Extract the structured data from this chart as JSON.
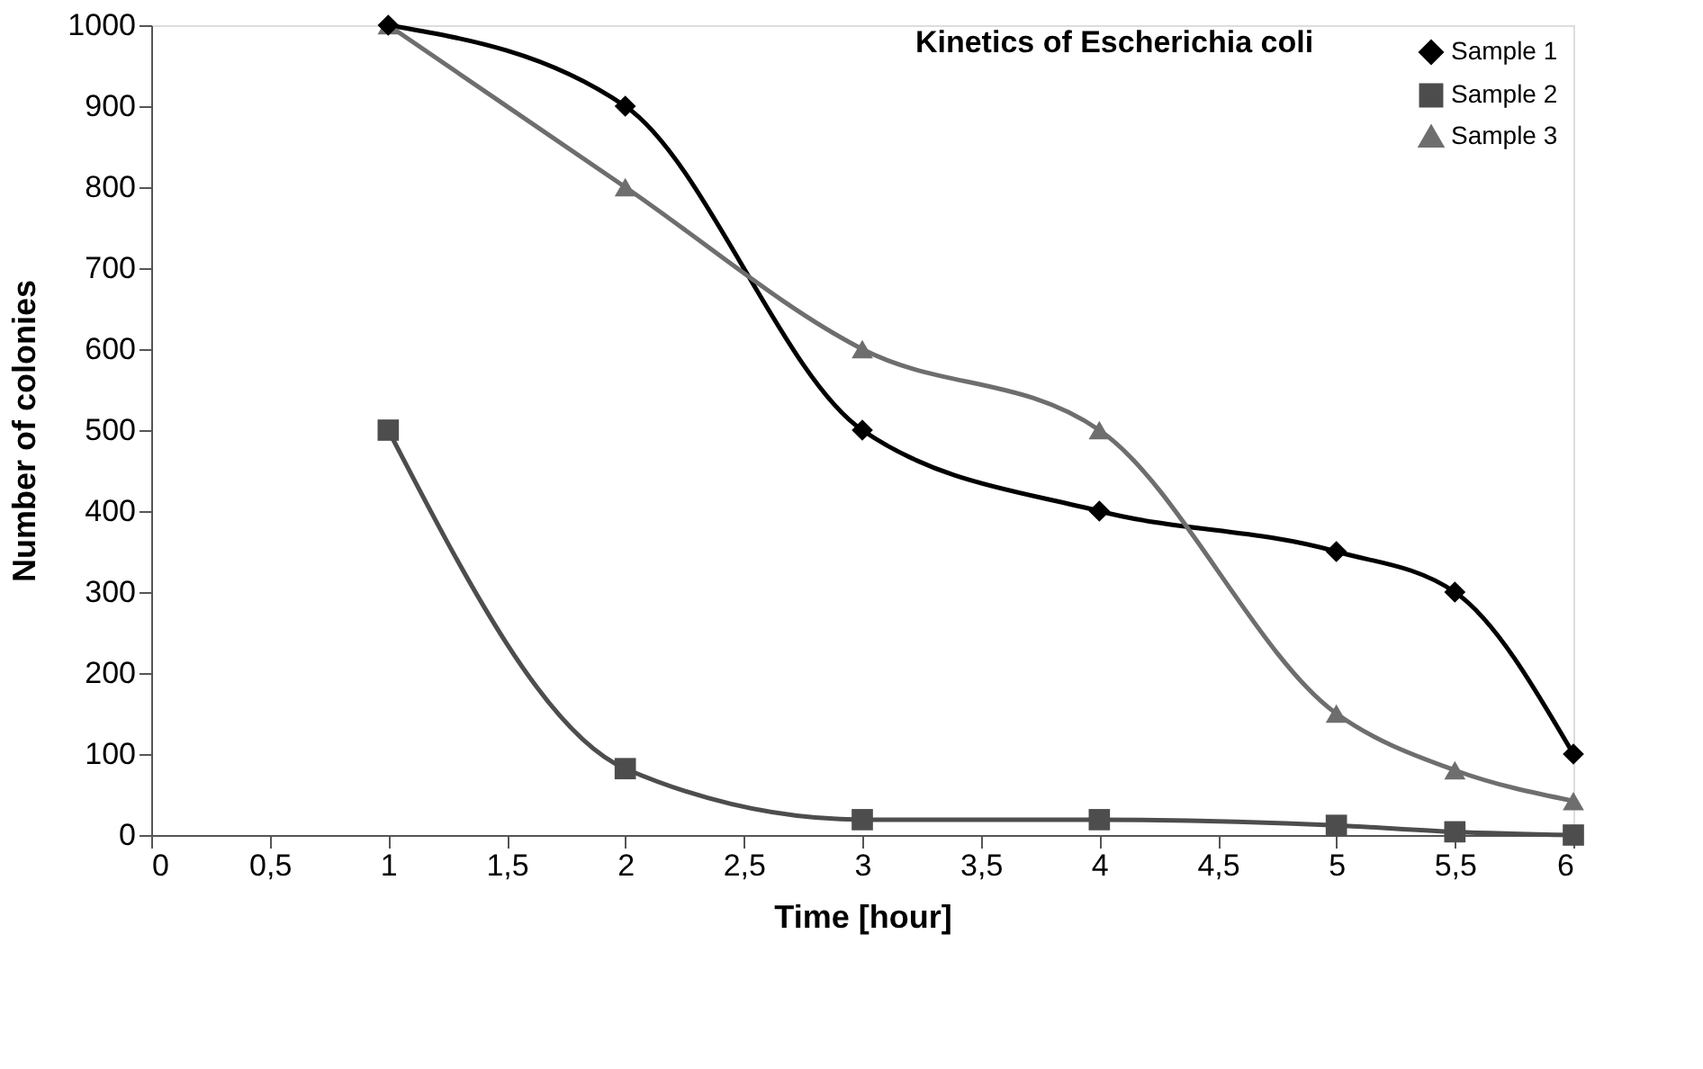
{
  "chart_data": {
    "type": "line",
    "title": "Kinetics of Escherichia coli",
    "xlabel": "Time [hour]",
    "ylabel": "Number of colonies",
    "x": [
      1,
      2,
      3,
      4,
      5,
      5.5,
      6
    ],
    "series": [
      {
        "name": "Sample 1",
        "color": "#000000",
        "marker": "diamond",
        "values": [
          1000,
          900,
          500,
          400,
          350,
          300,
          100
        ]
      },
      {
        "name": "Sample 2",
        "color": "#4d4d4d",
        "marker": "square",
        "values": [
          500,
          82,
          19,
          19,
          12,
          4,
          0
        ]
      },
      {
        "name": "Sample 3",
        "color": "#6e6e6e",
        "marker": "triangle",
        "values": [
          1000,
          800,
          600,
          500,
          150,
          80,
          42
        ]
      }
    ],
    "xlim": [
      0,
      6
    ],
    "xticks": [
      0,
      {
        "value": 0.5,
        "label": "0,5"
      },
      1,
      {
        "value": 1.5,
        "label": "1,5"
      },
      2,
      {
        "value": 2.5,
        "label": "2,5"
      },
      3,
      {
        "value": 3.5,
        "label": "3,5"
      },
      4,
      {
        "value": 4.5,
        "label": "4,5"
      },
      5,
      {
        "value": 5.5,
        "label": "5,5"
      },
      6
    ],
    "ylim": [
      0,
      1000
    ],
    "yticks": [
      0,
      100,
      200,
      300,
      400,
      500,
      600,
      700,
      800,
      900,
      1000
    ],
    "grid": false,
    "legend": "top right",
    "line_style": "solid"
  }
}
